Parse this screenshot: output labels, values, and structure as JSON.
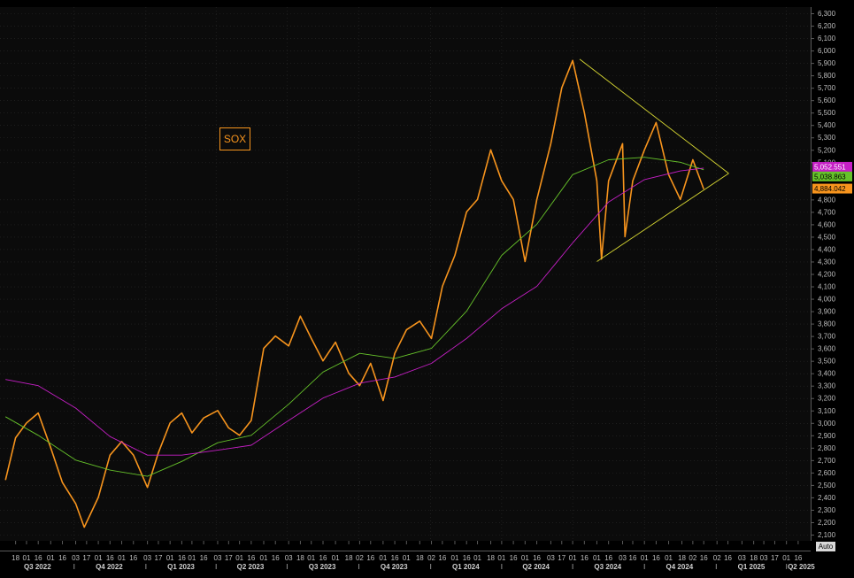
{
  "chart_data": {
    "type": "line",
    "title": "SOX",
    "series": [
      {
        "name": "",
        "color": "#f7941d",
        "values": [
          {
            "x": "2022-07-05",
            "y": 2540
          },
          {
            "x": "2022-07-18",
            "y": 2880
          },
          {
            "x": "2022-08-01",
            "y": 3000
          },
          {
            "x": "2022-08-16",
            "y": 3080
          },
          {
            "x": "2022-09-01",
            "y": 2800
          },
          {
            "x": "2022-09-16",
            "y": 2520
          },
          {
            "x": "2022-10-03",
            "y": 2350
          },
          {
            "x": "2022-10-14",
            "y": 2160
          },
          {
            "x": "2022-11-01",
            "y": 2400
          },
          {
            "x": "2022-11-16",
            "y": 2740
          },
          {
            "x": "2022-12-01",
            "y": 2850
          },
          {
            "x": "2022-12-16",
            "y": 2740
          },
          {
            "x": "2023-01-03",
            "y": 2480
          },
          {
            "x": "2023-01-17",
            "y": 2760
          },
          {
            "x": "2023-02-01",
            "y": 3000
          },
          {
            "x": "2023-02-16",
            "y": 3080
          },
          {
            "x": "2023-03-01",
            "y": 2920
          },
          {
            "x": "2023-03-16",
            "y": 3040
          },
          {
            "x": "2023-04-03",
            "y": 3100
          },
          {
            "x": "2023-04-17",
            "y": 2960
          },
          {
            "x": "2023-05-01",
            "y": 2900
          },
          {
            "x": "2023-05-16",
            "y": 3020
          },
          {
            "x": "2023-06-01",
            "y": 3600
          },
          {
            "x": "2023-06-16",
            "y": 3700
          },
          {
            "x": "2023-07-03",
            "y": 3620
          },
          {
            "x": "2023-07-18",
            "y": 3860
          },
          {
            "x": "2023-08-01",
            "y": 3680
          },
          {
            "x": "2023-08-16",
            "y": 3500
          },
          {
            "x": "2023-09-01",
            "y": 3650
          },
          {
            "x": "2023-09-18",
            "y": 3400
          },
          {
            "x": "2023-10-02",
            "y": 3300
          },
          {
            "x": "2023-10-16",
            "y": 3480
          },
          {
            "x": "2023-11-01",
            "y": 3180
          },
          {
            "x": "2023-11-16",
            "y": 3560
          },
          {
            "x": "2023-12-01",
            "y": 3750
          },
          {
            "x": "2023-12-18",
            "y": 3820
          },
          {
            "x": "2024-01-02",
            "y": 3680
          },
          {
            "x": "2024-01-16",
            "y": 4100
          },
          {
            "x": "2024-02-01",
            "y": 4350
          },
          {
            "x": "2024-02-16",
            "y": 4700
          },
          {
            "x": "2024-03-01",
            "y": 4800
          },
          {
            "x": "2024-03-18",
            "y": 5200
          },
          {
            "x": "2024-04-01",
            "y": 4950
          },
          {
            "x": "2024-04-16",
            "y": 4800
          },
          {
            "x": "2024-05-01",
            "y": 4300
          },
          {
            "x": "2024-05-16",
            "y": 4800
          },
          {
            "x": "2024-06-03",
            "y": 5250
          },
          {
            "x": "2024-06-17",
            "y": 5700
          },
          {
            "x": "2024-07-01",
            "y": 5920
          },
          {
            "x": "2024-07-16",
            "y": 5500
          },
          {
            "x": "2024-08-01",
            "y": 4950
          },
          {
            "x": "2024-08-07",
            "y": 4320
          },
          {
            "x": "2024-08-16",
            "y": 4950
          },
          {
            "x": "2024-09-03",
            "y": 5250
          },
          {
            "x": "2024-09-06",
            "y": 4500
          },
          {
            "x": "2024-09-16",
            "y": 4950
          },
          {
            "x": "2024-10-01",
            "y": 5200
          },
          {
            "x": "2024-10-16",
            "y": 5420
          },
          {
            "x": "2024-11-01",
            "y": 5000
          },
          {
            "x": "2024-11-16",
            "y": 4800
          },
          {
            "x": "2024-12-02",
            "y": 5120
          },
          {
            "x": "2024-12-16",
            "y": 4884
          }
        ]
      },
      {
        "name": "",
        "color": "#66c22a",
        "values": [
          {
            "x": "2022-07-05",
            "y": 3050
          },
          {
            "x": "2022-08-16",
            "y": 2900
          },
          {
            "x": "2022-10-03",
            "y": 2700
          },
          {
            "x": "2022-11-16",
            "y": 2620
          },
          {
            "x": "2023-01-03",
            "y": 2570
          },
          {
            "x": "2023-02-16",
            "y": 2690
          },
          {
            "x": "2023-04-03",
            "y": 2840
          },
          {
            "x": "2023-05-16",
            "y": 2900
          },
          {
            "x": "2023-07-03",
            "y": 3150
          },
          {
            "x": "2023-08-16",
            "y": 3410
          },
          {
            "x": "2023-10-02",
            "y": 3560
          },
          {
            "x": "2023-11-16",
            "y": 3520
          },
          {
            "x": "2024-01-02",
            "y": 3600
          },
          {
            "x": "2024-02-16",
            "y": 3900
          },
          {
            "x": "2024-04-01",
            "y": 4350
          },
          {
            "x": "2024-05-16",
            "y": 4600
          },
          {
            "x": "2024-07-01",
            "y": 5000
          },
          {
            "x": "2024-08-16",
            "y": 5120
          },
          {
            "x": "2024-10-01",
            "y": 5140
          },
          {
            "x": "2024-11-16",
            "y": 5100
          },
          {
            "x": "2024-12-16",
            "y": 5039
          }
        ]
      },
      {
        "name": "",
        "color": "#c51fc5",
        "values": [
          {
            "x": "2022-07-05",
            "y": 3350
          },
          {
            "x": "2022-08-16",
            "y": 3300
          },
          {
            "x": "2022-10-03",
            "y": 3120
          },
          {
            "x": "2022-11-16",
            "y": 2890
          },
          {
            "x": "2023-01-03",
            "y": 2740
          },
          {
            "x": "2023-02-16",
            "y": 2740
          },
          {
            "x": "2023-04-03",
            "y": 2780
          },
          {
            "x": "2023-05-16",
            "y": 2820
          },
          {
            "x": "2023-07-03",
            "y": 3020
          },
          {
            "x": "2023-08-16",
            "y": 3200
          },
          {
            "x": "2023-10-02",
            "y": 3320
          },
          {
            "x": "2023-11-16",
            "y": 3370
          },
          {
            "x": "2024-01-02",
            "y": 3480
          },
          {
            "x": "2024-02-16",
            "y": 3680
          },
          {
            "x": "2024-04-01",
            "y": 3920
          },
          {
            "x": "2024-05-16",
            "y": 4100
          },
          {
            "x": "2024-07-01",
            "y": 4450
          },
          {
            "x": "2024-08-16",
            "y": 4780
          },
          {
            "x": "2024-10-01",
            "y": 4960
          },
          {
            "x": "2024-11-16",
            "y": 5030
          },
          {
            "x": "2024-12-16",
            "y": 5053
          }
        ]
      }
    ],
    "trendlines": [
      {
        "color": "#d7d732",
        "points": [
          {
            "x": "2024-07-10",
            "y": 5930
          },
          {
            "x": "2025-01-17",
            "y": 5010
          }
        ]
      },
      {
        "color": "#d7d732",
        "points": [
          {
            "x": "2024-08-01",
            "y": 4300
          },
          {
            "x": "2025-01-17",
            "y": 5010
          }
        ]
      }
    ],
    "price_tags": [
      {
        "text": "5,052.551",
        "bg": "#c51fc5",
        "fg": "#ffffff",
        "value": 5052.551
      },
      {
        "text": "5,038.863",
        "bg": "#66c22a",
        "fg": "#000000",
        "value": 5038.863
      },
      {
        "text": "4,884.042",
        "bg": "#f7941d",
        "fg": "#000000",
        "value": 4884.042
      }
    ],
    "y_axis": {
      "ylim": [
        2050,
        6350
      ],
      "ticks": [
        {
          "v": 6300,
          "label": "6,300"
        },
        {
          "v": 6200,
          "label": "6,200"
        },
        {
          "v": 6100,
          "label": "6,100"
        },
        {
          "v": 6000,
          "label": "6,000"
        },
        {
          "v": 5900,
          "label": "5,900"
        },
        {
          "v": 5800,
          "label": "5,800"
        },
        {
          "v": 5700,
          "label": "5,700"
        },
        {
          "v": 5600,
          "label": "5,600"
        },
        {
          "v": 5500,
          "label": "5,500"
        },
        {
          "v": 5400,
          "label": "5,400"
        },
        {
          "v": 5300,
          "label": "5,300"
        },
        {
          "v": 5200,
          "label": "5,200"
        },
        {
          "v": 5100,
          "label": "5,100"
        },
        {
          "v": 4800,
          "label": "4,800"
        },
        {
          "v": 4700,
          "label": "4,700"
        },
        {
          "v": 4600,
          "label": "4,600"
        },
        {
          "v": 4500,
          "label": "4,500"
        },
        {
          "v": 4400,
          "label": "4,400"
        },
        {
          "v": 4300,
          "label": "4,300"
        },
        {
          "v": 4200,
          "label": "4,200"
        },
        {
          "v": 4100,
          "label": "4,100"
        },
        {
          "v": 4000,
          "label": "4,000"
        },
        {
          "v": 3900,
          "label": "3,900"
        },
        {
          "v": 3800,
          "label": "3,800"
        },
        {
          "v": 3700,
          "label": "3,700"
        },
        {
          "v": 3600,
          "label": "3,600"
        },
        {
          "v": 3500,
          "label": "3,500"
        },
        {
          "v": 3400,
          "label": "3,400"
        },
        {
          "v": 3300,
          "label": "3,300"
        },
        {
          "v": 3200,
          "label": "3,200"
        },
        {
          "v": 3100,
          "label": "3,100"
        },
        {
          "v": 3000,
          "label": "3,000"
        },
        {
          "v": 2900,
          "label": "2,900"
        },
        {
          "v": 2800,
          "label": "2,800"
        },
        {
          "v": 2700,
          "label": "2,700"
        },
        {
          "v": 2600,
          "label": "2,600"
        },
        {
          "v": 2500,
          "label": "2,500"
        },
        {
          "v": 2400,
          "label": "2,400"
        },
        {
          "v": 2300,
          "label": "2,300"
        },
        {
          "v": 2200,
          "label": "2,200"
        },
        {
          "v": 2100,
          "label": "2,100"
        }
      ]
    },
    "x_axis": {
      "xlim": [
        "2022-06-28",
        "2025-05-02"
      ],
      "day_ticks": [
        {
          "d": "2022-07-18",
          "label": "18"
        },
        {
          "d": "2022-08-01",
          "label": "01"
        },
        {
          "d": "2022-08-16",
          "label": "16"
        },
        {
          "d": "2022-09-01",
          "label": "01"
        },
        {
          "d": "2022-09-16",
          "label": "16"
        },
        {
          "d": "2022-10-03",
          "label": "03"
        },
        {
          "d": "2022-10-17",
          "label": "17"
        },
        {
          "d": "2022-11-01",
          "label": "01"
        },
        {
          "d": "2022-11-16",
          "label": "16"
        },
        {
          "d": "2022-12-01",
          "label": "01"
        },
        {
          "d": "2022-12-16",
          "label": "16"
        },
        {
          "d": "2023-01-03",
          "label": "03"
        },
        {
          "d": "2023-01-17",
          "label": "17"
        },
        {
          "d": "2023-02-01",
          "label": "01"
        },
        {
          "d": "2023-02-16",
          "label": "16"
        },
        {
          "d": "2023-03-01",
          "label": "01"
        },
        {
          "d": "2023-03-16",
          "label": "16"
        },
        {
          "d": "2023-04-03",
          "label": "03"
        },
        {
          "d": "2023-04-17",
          "label": "17"
        },
        {
          "d": "2023-05-01",
          "label": "01"
        },
        {
          "d": "2023-05-16",
          "label": "16"
        },
        {
          "d": "2023-06-01",
          "label": "01"
        },
        {
          "d": "2023-06-16",
          "label": "16"
        },
        {
          "d": "2023-07-03",
          "label": "03"
        },
        {
          "d": "2023-07-18",
          "label": "18"
        },
        {
          "d": "2023-08-01",
          "label": "01"
        },
        {
          "d": "2023-08-16",
          "label": "16"
        },
        {
          "d": "2023-09-01",
          "label": "01"
        },
        {
          "d": "2023-09-18",
          "label": "18"
        },
        {
          "d": "2023-10-02",
          "label": "02"
        },
        {
          "d": "2023-10-16",
          "label": "16"
        },
        {
          "d": "2023-11-01",
          "label": "01"
        },
        {
          "d": "2023-11-16",
          "label": "16"
        },
        {
          "d": "2023-12-01",
          "label": "01"
        },
        {
          "d": "2023-12-18",
          "label": "18"
        },
        {
          "d": "2024-01-02",
          "label": "02"
        },
        {
          "d": "2024-01-16",
          "label": "16"
        },
        {
          "d": "2024-02-01",
          "label": "01"
        },
        {
          "d": "2024-02-16",
          "label": "16"
        },
        {
          "d": "2024-03-01",
          "label": "01"
        },
        {
          "d": "2024-03-18",
          "label": "18"
        },
        {
          "d": "2024-04-01",
          "label": "01"
        },
        {
          "d": "2024-04-16",
          "label": "16"
        },
        {
          "d": "2024-05-01",
          "label": "01"
        },
        {
          "d": "2024-05-16",
          "label": "16"
        },
        {
          "d": "2024-06-03",
          "label": "03"
        },
        {
          "d": "2024-06-17",
          "label": "17"
        },
        {
          "d": "2024-07-01",
          "label": "01"
        },
        {
          "d": "2024-07-16",
          "label": "16"
        },
        {
          "d": "2024-08-01",
          "label": "01"
        },
        {
          "d": "2024-08-16",
          "label": "16"
        },
        {
          "d": "2024-09-03",
          "label": "03"
        },
        {
          "d": "2024-09-16",
          "label": "16"
        },
        {
          "d": "2024-10-01",
          "label": "01"
        },
        {
          "d": "2024-10-16",
          "label": "16"
        },
        {
          "d": "2024-11-01",
          "label": "01"
        },
        {
          "d": "2024-11-18",
          "label": "18"
        },
        {
          "d": "2024-12-02",
          "label": "02"
        },
        {
          "d": "2024-12-16",
          "label": "16"
        },
        {
          "d": "2025-01-02",
          "label": "02"
        },
        {
          "d": "2025-01-16",
          "label": "16"
        },
        {
          "d": "2025-02-03",
          "label": "03"
        },
        {
          "d": "2025-02-18",
          "label": "18"
        },
        {
          "d": "2025-03-03",
          "label": "03"
        },
        {
          "d": "2025-03-17",
          "label": "17"
        },
        {
          "d": "2025-04-01",
          "label": "01"
        },
        {
          "d": "2025-04-16",
          "label": "16"
        }
      ],
      "quarter_labels": [
        {
          "d": "2022-08-15",
          "label": "Q3 2022"
        },
        {
          "d": "2022-11-15",
          "label": "Q4 2022"
        },
        {
          "d": "2023-02-15",
          "label": "Q1 2023"
        },
        {
          "d": "2023-05-15",
          "label": "Q2 2023"
        },
        {
          "d": "2023-08-15",
          "label": "Q3 2023"
        },
        {
          "d": "2023-11-15",
          "label": "Q4 2023"
        },
        {
          "d": "2024-02-15",
          "label": "Q1 2024"
        },
        {
          "d": "2024-05-15",
          "label": "Q2 2024"
        },
        {
          "d": "2024-08-15",
          "label": "Q3 2024"
        },
        {
          "d": "2024-11-15",
          "label": "Q4 2024"
        },
        {
          "d": "2025-02-15",
          "label": "Q1 2025"
        },
        {
          "d": "2025-04-20",
          "label": "Q2 2025"
        }
      ],
      "quarter_starts": [
        "2022-10-01",
        "2023-01-01",
        "2023-04-01",
        "2023-07-01",
        "2023-10-01",
        "2024-01-01",
        "2024-04-01",
        "2024-07-01",
        "2024-10-01",
        "2025-01-01",
        "2025-04-01"
      ]
    },
    "grid": true,
    "colors": {
      "background": "#000000",
      "panel": "#0b0b0b",
      "grid": "#2a2a2a",
      "axis_text": "#bdbdbd"
    },
    "auto_label": "Auto"
  }
}
